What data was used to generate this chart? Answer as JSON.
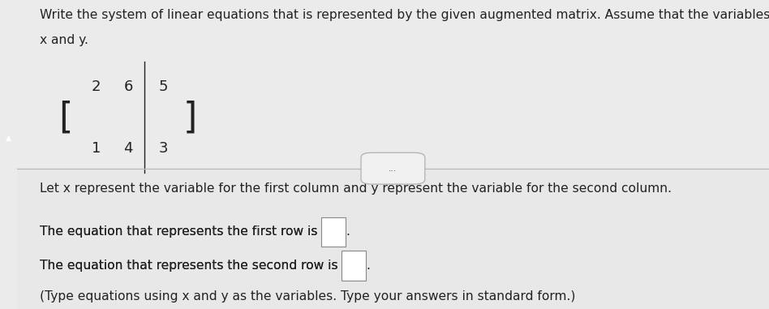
{
  "bg_top": "#ebebeb",
  "bg_bottom": "#e8e8e8",
  "left_bar_color": "#8B0000",
  "left_bar_width": 0.022,
  "title_line1": "Write the system of linear equations that is represented by the given augmented matrix. Assume that the variables are",
  "title_line2": "x and y.",
  "matrix_row1": [
    2,
    6,
    5
  ],
  "matrix_row2": [
    1,
    4,
    3
  ],
  "para1": "Let x represent the variable for the first column and y represent the variable for the second column.",
  "para2_prefix": "The equation that represents the first row is ",
  "para3_prefix": "The equation that represents the second row is ",
  "para4": "(Type equations using x and y as the variables. Type your answers in standard form.)",
  "dots_text": "...",
  "font_size": 11.2,
  "matrix_font_size": 13,
  "text_color": "#222222",
  "divider_color": "#bbbbbb",
  "box_edge_color": "#888888"
}
